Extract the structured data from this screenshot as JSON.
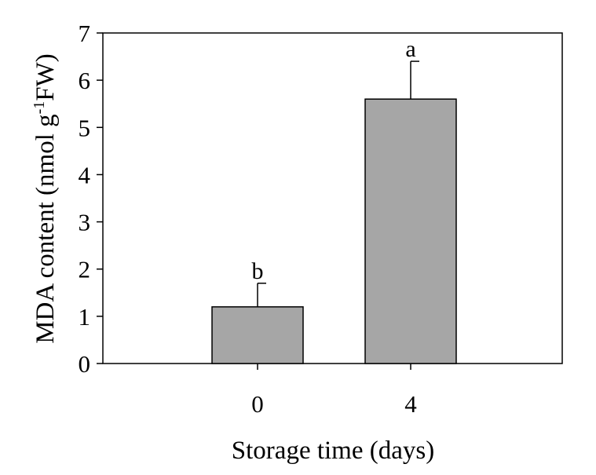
{
  "chart_data": {
    "type": "bar",
    "categories": [
      "0",
      "4"
    ],
    "values": [
      1.2,
      5.6
    ],
    "error_plus": [
      0.5,
      0.8
    ],
    "significance_letters": [
      "b",
      "a"
    ],
    "xlabel": "Storage time (days)",
    "ylabel": {
      "prefix": "MDA content (nmol g",
      "superscript": "-1",
      "suffix": "FW)"
    },
    "ylim": [
      0,
      7
    ],
    "yticks": [
      "0",
      "1",
      "2",
      "3",
      "4",
      "5",
      "6",
      "7"
    ],
    "grid": false,
    "colors": {
      "bar_fill": "#a6a6a6",
      "bar_edge": "#000000"
    }
  }
}
